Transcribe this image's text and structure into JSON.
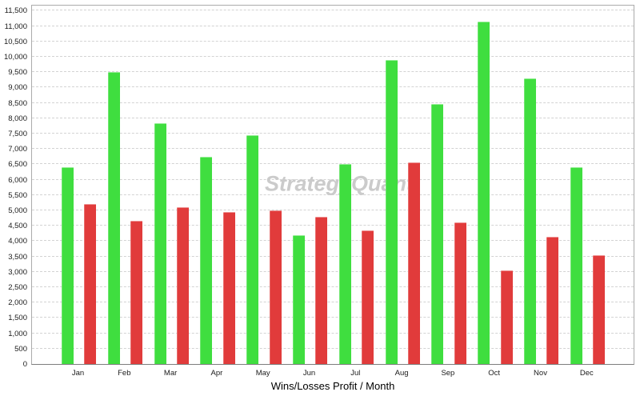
{
  "chart_data": {
    "type": "bar",
    "title": "Wins/Losses Profit / Month",
    "watermark": "StrategyQuant",
    "categories": [
      "Jan",
      "Feb",
      "Mar",
      "Apr",
      "May",
      "Jun",
      "Jul",
      "Aug",
      "Sep",
      "Oct",
      "Nov",
      "Dec"
    ],
    "series": [
      {
        "name": "Wins",
        "color": "#3FDE3F",
        "values": [
          6400,
          9500,
          7850,
          6750,
          7450,
          4200,
          6500,
          9900,
          8450,
          11150,
          9300,
          6400
        ]
      },
      {
        "name": "Losses",
        "color": "#E13B3B",
        "values": [
          5200,
          4650,
          5100,
          4950,
          5000,
          4800,
          4350,
          6550,
          4600,
          3050,
          4150,
          3550
        ]
      }
    ],
    "xlabel": "",
    "ylabel": "",
    "ylim": [
      0,
      11715
    ],
    "y_tick_step": 500,
    "y_ticks": [
      "0",
      "500",
      "1,000",
      "1,500",
      "2,000",
      "2,500",
      "3,000",
      "3,500",
      "4,000",
      "4,500",
      "5,000",
      "5,500",
      "6,000",
      "6,500",
      "7,000",
      "7,500",
      "8,000",
      "8,500",
      "9,000",
      "9,500",
      "10,000",
      "10,500",
      "11,000",
      "11,500"
    ],
    "grid": "horizontal-dashed",
    "legend": "none",
    "colors": {
      "background": "#ffffff",
      "gridline": "#d3d3d3",
      "border": "#ababab",
      "watermark": "#cbcbcb"
    }
  }
}
